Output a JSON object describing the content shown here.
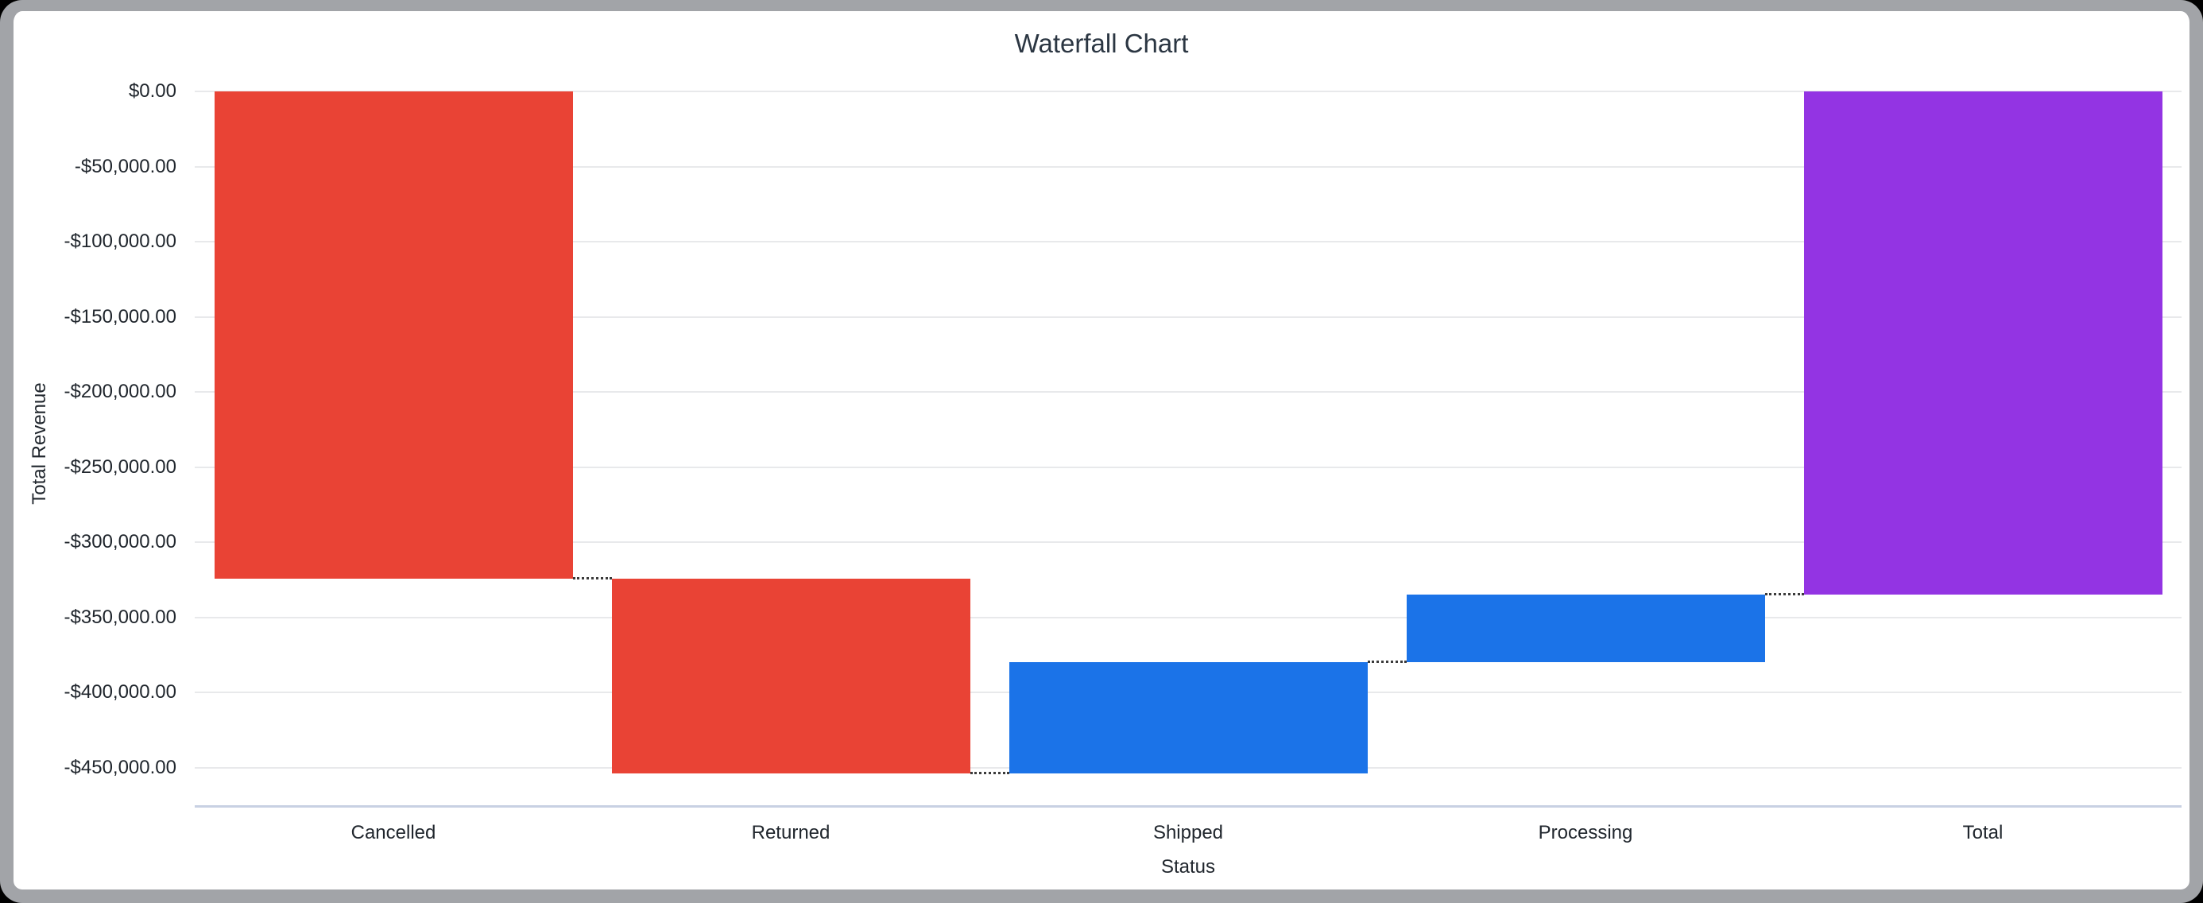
{
  "window": {
    "frame_color": "#A2A4A8",
    "card_background": "#FFFFFF"
  },
  "chart_data": {
    "type": "bar",
    "subtype": "waterfall",
    "title": "Waterfall Chart",
    "xlabel": "Status",
    "ylabel": "Total Revenue",
    "categories": [
      "Cancelled",
      "Returned",
      "Shipped",
      "Processing",
      "Total"
    ],
    "ylim": [
      -476000,
      0
    ],
    "grid": true,
    "legend": "none",
    "colors": {
      "decrease": "#E94335",
      "increase": "#1B73E8",
      "total": "#9334E3"
    },
    "y_ticks": [
      {
        "label": "$0.00",
        "value": 0
      },
      {
        "label": "-$50,000.00",
        "value": -50000
      },
      {
        "label": "-$100,000.00",
        "value": -100000
      },
      {
        "label": "-$150,000.00",
        "value": -150000
      },
      {
        "label": "-$200,000.00",
        "value": -200000
      },
      {
        "label": "-$250,000.00",
        "value": -250000
      },
      {
        "label": "-$300,000.00",
        "value": -300000
      },
      {
        "label": "-$350,000.00",
        "value": -350000
      },
      {
        "label": "-$400,000.00",
        "value": -400000
      },
      {
        "label": "-$450,000.00",
        "value": -450000
      }
    ],
    "bars": [
      {
        "label": "Cancelled",
        "start": 0,
        "end": -324000,
        "delta": -324000,
        "direction": "decrease",
        "color": "#E94335"
      },
      {
        "label": "Returned",
        "start": -324000,
        "end": -454000,
        "delta": -130000,
        "direction": "decrease",
        "color": "#E94335"
      },
      {
        "label": "Shipped",
        "start": -454000,
        "end": -380000,
        "delta": 74000,
        "direction": "increase",
        "color": "#1B73E8"
      },
      {
        "label": "Processing",
        "start": -380000,
        "end": -335000,
        "delta": 45000,
        "direction": "increase",
        "color": "#1B73E8"
      },
      {
        "label": "Total",
        "start": 0,
        "end": -335000,
        "delta": -335000,
        "direction": "total",
        "color": "#9334E3"
      }
    ],
    "connectors": [
      {
        "between": [
          "Cancelled",
          "Returned"
        ],
        "value": -324000
      },
      {
        "between": [
          "Returned",
          "Shipped"
        ],
        "value": -454000
      },
      {
        "between": [
          "Shipped",
          "Processing"
        ],
        "value": -380000
      },
      {
        "between": [
          "Processing",
          "Total"
        ],
        "value": -335000
      }
    ]
  }
}
